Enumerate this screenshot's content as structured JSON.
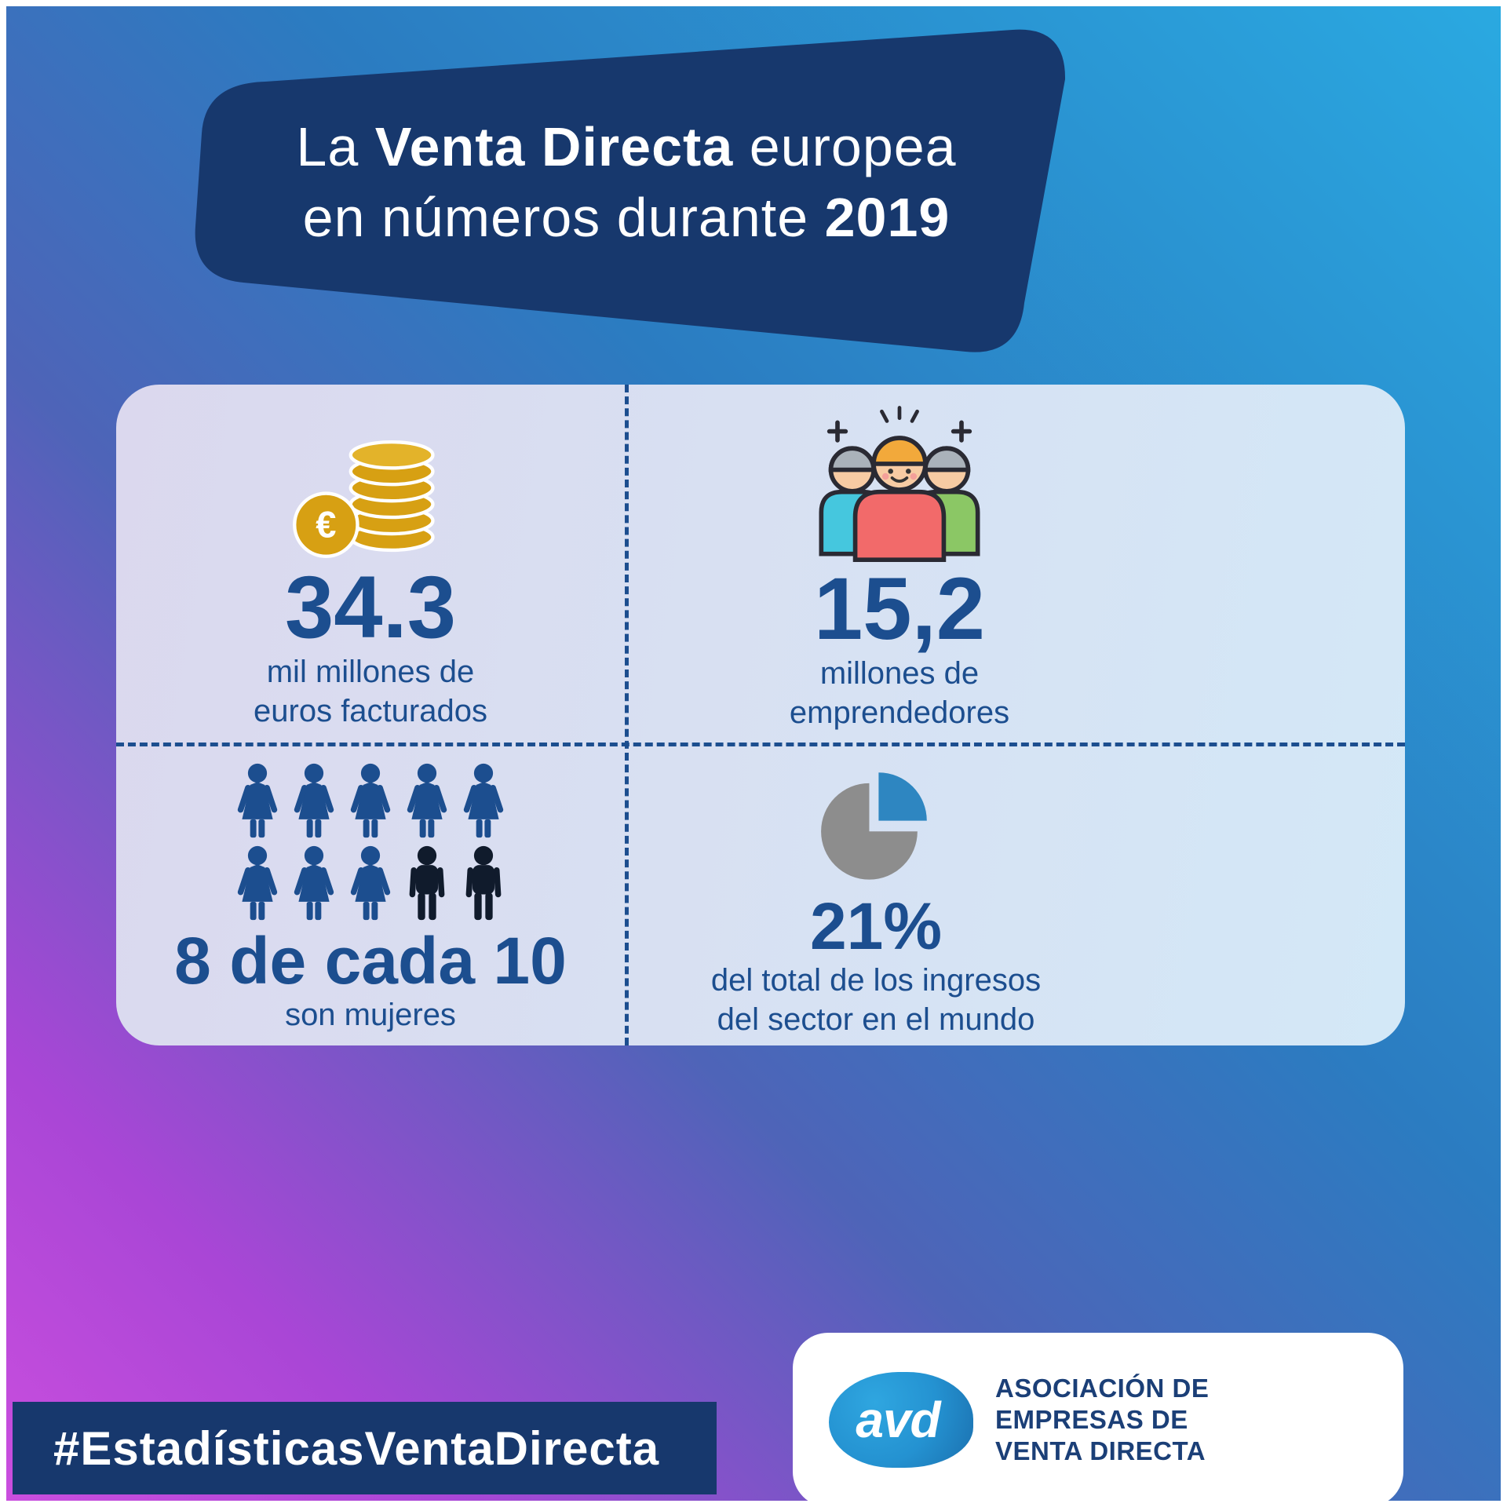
{
  "title": {
    "seg1": "La ",
    "seg2": "Venta Directa",
    "seg3": " europea",
    "seg4": "en números durante ",
    "seg5": "2019"
  },
  "stats": {
    "revenue": {
      "value": "34.3",
      "label_line1": "mil millones de",
      "label_line2": "euros facturados",
      "icon": "euro-coins-icon"
    },
    "entrepreneurs": {
      "value": "15,2",
      "label_line1": "millones de",
      "label_line2": "emprendedores",
      "icon": "entrepreneurs-icon"
    },
    "women": {
      "value": "8 de cada 10",
      "label_line1": "son mujeres",
      "icon": "women-pictogram",
      "women_count": 8,
      "men_count": 2
    },
    "world_share": {
      "value": "21%",
      "label_line1": "del total de los ingresos",
      "label_line2": "del sector en el mundo",
      "icon": "pie-chart-icon"
    }
  },
  "footer": {
    "hashtag": "#EstadísticasVentaDirecta",
    "logo": {
      "text": "avd",
      "org_line1": "ASOCIACIÓN DE",
      "org_line2": "EMPRESAS DE",
      "org_line3": "VENTA DIRECTA"
    }
  },
  "colors": {
    "navy": "#17386d",
    "stat_blue": "#1c4e8f",
    "coin_gold": "#d7a013",
    "pie_blue": "#2e86c1",
    "pie_gray": "#8d8d8d",
    "gradient_cyan": "#2aa9e1",
    "gradient_magenta": "#ca4ede"
  },
  "chart_data": [
    {
      "type": "stat",
      "label": "mil millones de euros facturados",
      "value": 34.3
    },
    {
      "type": "stat",
      "label": "millones de emprendedores",
      "value": 15.2
    },
    {
      "type": "pictogram",
      "title": "8 de cada 10 son mujeres",
      "categories": [
        "mujeres",
        "hombres"
      ],
      "values": [
        8,
        2
      ]
    },
    {
      "type": "pie",
      "title": "21% del total de los ingresos del sector en el mundo",
      "categories": [
        "Venta Directa europea",
        "resto del mundo"
      ],
      "values": [
        21,
        79
      ],
      "colors": [
        "#2e86c1",
        "#8d8d8d"
      ]
    }
  ]
}
